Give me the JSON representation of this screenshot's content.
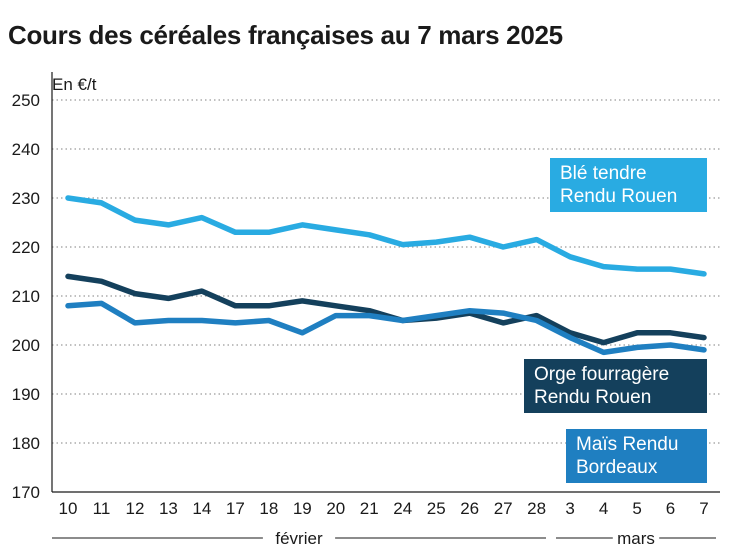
{
  "title": "Cours des céréales françaises au 7 mars 2025",
  "chart_data": {
    "type": "line",
    "unit_label": "En €/t",
    "ylim": [
      170,
      250
    ],
    "yticks": [
      170,
      180,
      190,
      200,
      210,
      220,
      230,
      240,
      250
    ],
    "grid": true,
    "categories": [
      "10",
      "11",
      "12",
      "13",
      "14",
      "17",
      "18",
      "19",
      "20",
      "21",
      "24",
      "25",
      "26",
      "27",
      "28",
      "3",
      "4",
      "5",
      "6",
      "7"
    ],
    "groups": [
      {
        "label": "février",
        "from": 0,
        "to": 14
      },
      {
        "label": "mars",
        "from": 15,
        "to": 19
      }
    ],
    "series": [
      {
        "name": "Blé tendre\nRendu Rouen",
        "color": "#29abe2",
        "values": [
          230,
          229,
          225.5,
          224.5,
          226,
          223,
          223,
          224.5,
          223.5,
          222.5,
          220.5,
          221,
          222,
          220,
          221.5,
          218,
          216,
          215.5,
          215.5,
          214.5
        ]
      },
      {
        "name": "Orge fourragère\nRendu Rouen",
        "color": "#14405c",
        "values": [
          214,
          213,
          210.5,
          209.5,
          211,
          208,
          208,
          209,
          208,
          207,
          205,
          205.5,
          206.5,
          204.5,
          206,
          202.5,
          200.5,
          202.5,
          202.5,
          201.5
        ]
      },
      {
        "name": "Maïs Rendu\nBordeaux",
        "color": "#1f7fc1",
        "values": [
          208,
          208.5,
          204.5,
          205,
          205,
          204.5,
          205,
          202.5,
          206,
          206,
          205,
          206,
          207,
          206.5,
          205,
          201.5,
          198.5,
          199.5,
          200,
          199
        ]
      }
    ],
    "legend_placement": "inline-right"
  }
}
